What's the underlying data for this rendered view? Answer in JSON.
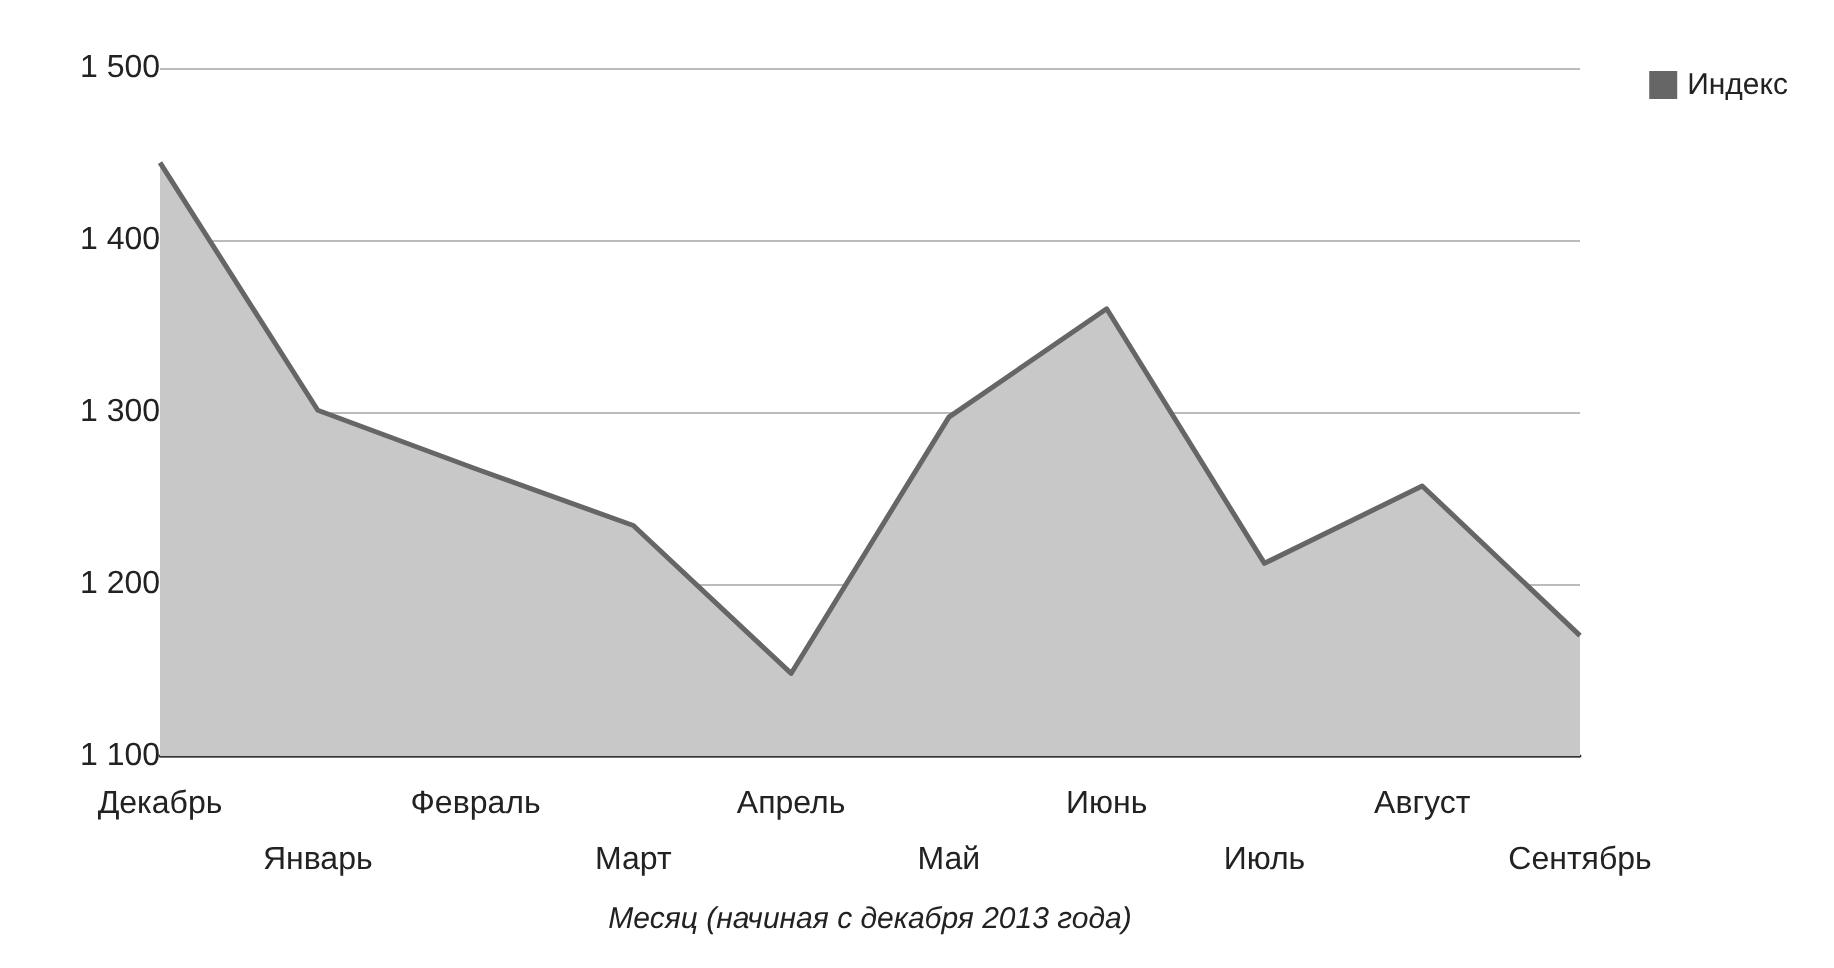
{
  "chart_data": {
    "type": "area",
    "categories": [
      "Декабрь",
      "Январь",
      "Февраль",
      "Март",
      "Апрель",
      "Май",
      "Июнь",
      "Июль",
      "Август",
      "Сентябрь"
    ],
    "series": [
      {
        "name": "Индекс",
        "color": "#666666",
        "values": [
          1445,
          1301,
          1267,
          1234,
          1148,
          1297,
          1360,
          1212,
          1257,
          1170
        ]
      }
    ],
    "xlabel": "Месяц (начиная с декабря 2013 года)",
    "ylim": [
      1100,
      1500
    ],
    "yticks": [
      {
        "value": 1100,
        "label": "1 100"
      },
      {
        "value": 1200,
        "label": "1 200"
      },
      {
        "value": 1300,
        "label": "1 300"
      },
      {
        "value": 1400,
        "label": "1 400"
      },
      {
        "value": 1500,
        "label": "1 500"
      }
    ],
    "grid": "y",
    "legend": "top right",
    "marker": "none",
    "line_style": "solid"
  }
}
